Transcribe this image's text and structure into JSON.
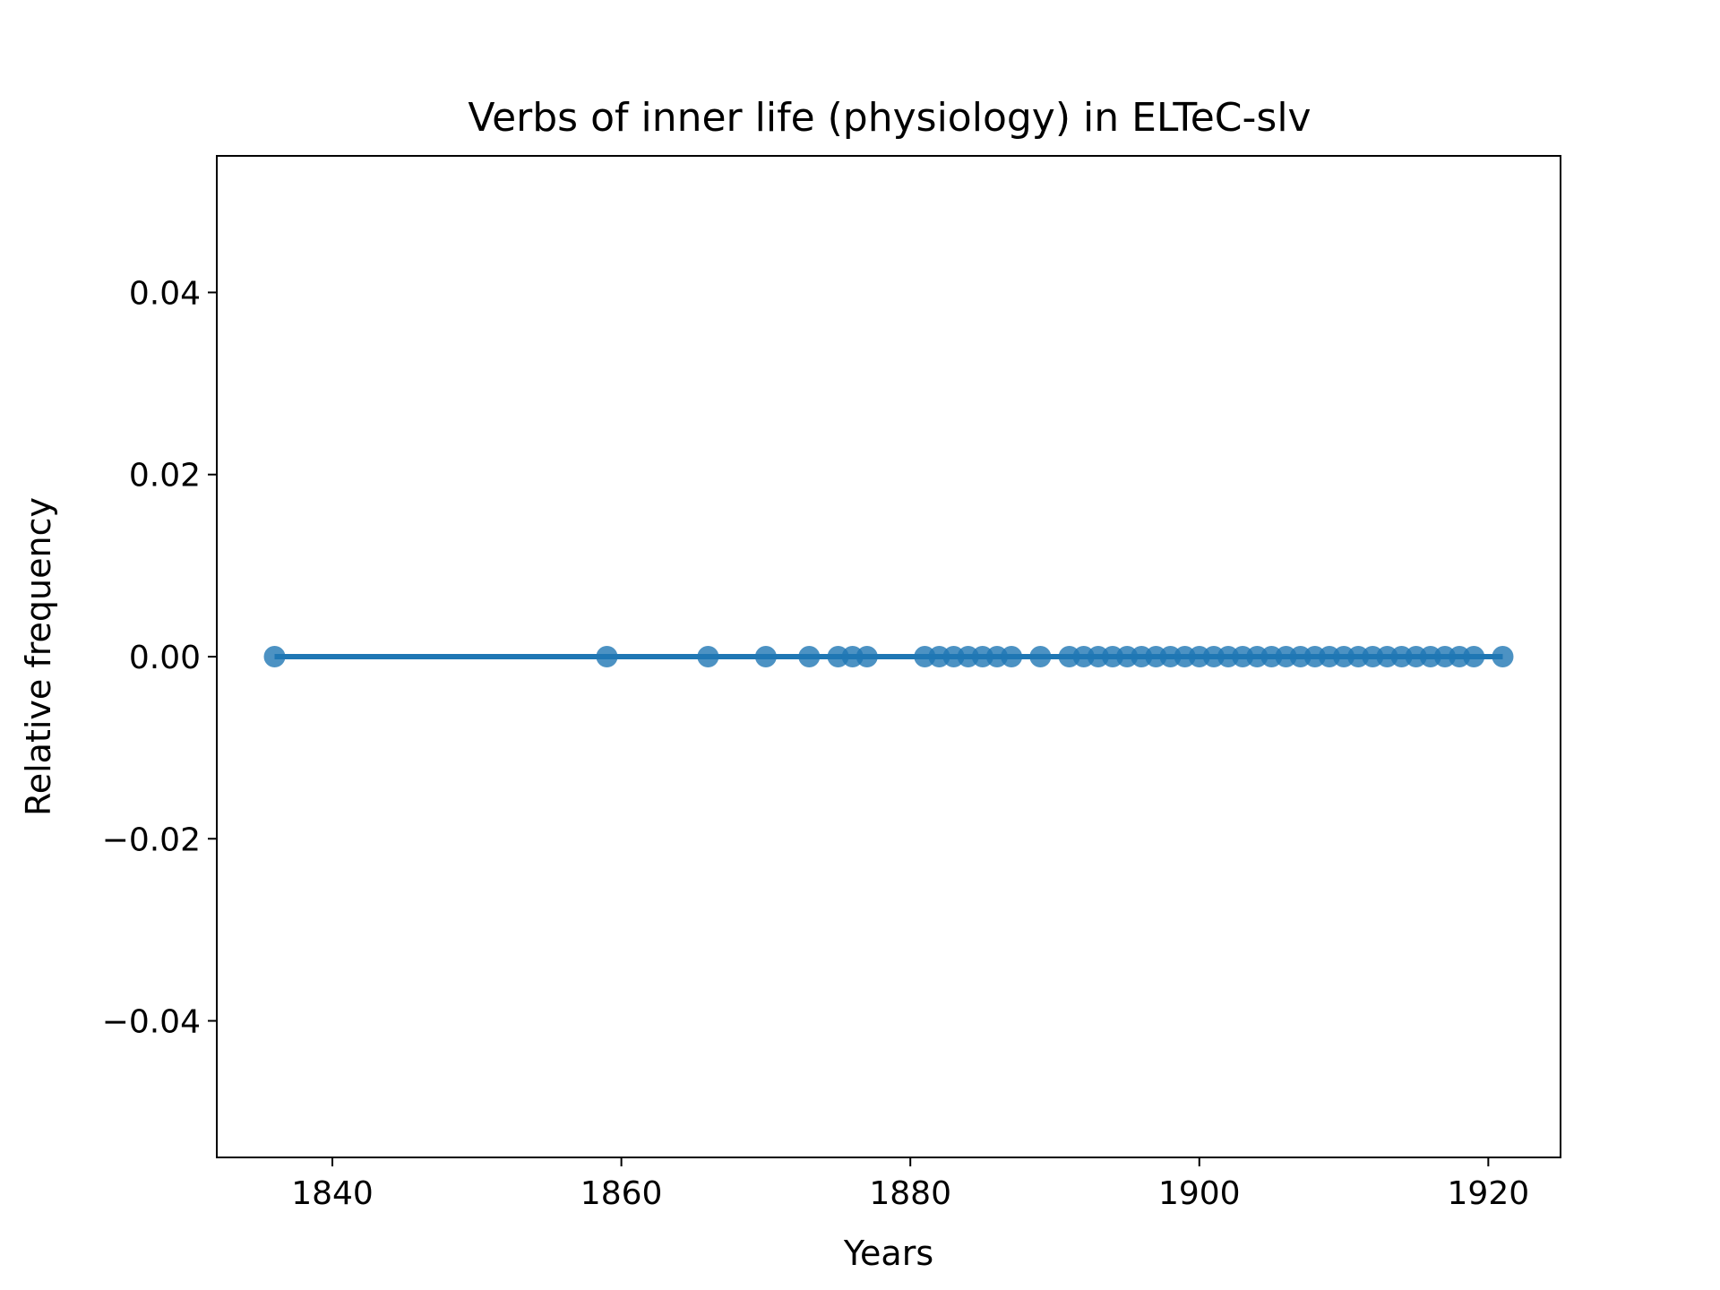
{
  "chart_data": {
    "type": "line",
    "title": "Verbs of inner life (physiology) in ELTeC-slv",
    "xlabel": "Years",
    "ylabel": "Relative frequency",
    "xlim": [
      1832,
      1925
    ],
    "ylim": [
      -0.055,
      0.055
    ],
    "x_ticks": [
      1840,
      1860,
      1880,
      1900,
      1920
    ],
    "x_tick_labels": [
      "1840",
      "1860",
      "1880",
      "1900",
      "1920"
    ],
    "y_ticks": [
      0.04,
      0.02,
      0.0,
      -0.02,
      -0.04
    ],
    "y_tick_labels": [
      "0.04",
      "0.02",
      "0.00",
      "−0.02",
      "−0.04"
    ],
    "grid": false,
    "series": [
      {
        "color": "#1f77b4",
        "markers": true,
        "x": [
          1836,
          1859,
          1866,
          1870,
          1873,
          1875,
          1876,
          1877,
          1881,
          1882,
          1883,
          1884,
          1885,
          1886,
          1887,
          1889,
          1891,
          1892,
          1893,
          1894,
          1895,
          1896,
          1897,
          1898,
          1899,
          1900,
          1901,
          1902,
          1903,
          1904,
          1905,
          1906,
          1907,
          1908,
          1909,
          1910,
          1911,
          1912,
          1913,
          1914,
          1915,
          1916,
          1917,
          1918,
          1919,
          1921
        ],
        "y": [
          0,
          0,
          0,
          0,
          0,
          0,
          0,
          0,
          0,
          0,
          0,
          0,
          0,
          0,
          0,
          0,
          0,
          0,
          0,
          0,
          0,
          0,
          0,
          0,
          0,
          0,
          0,
          0,
          0,
          0,
          0,
          0,
          0,
          0,
          0,
          0,
          0,
          0,
          0,
          0,
          0,
          0,
          0,
          0,
          0,
          0
        ]
      }
    ]
  }
}
